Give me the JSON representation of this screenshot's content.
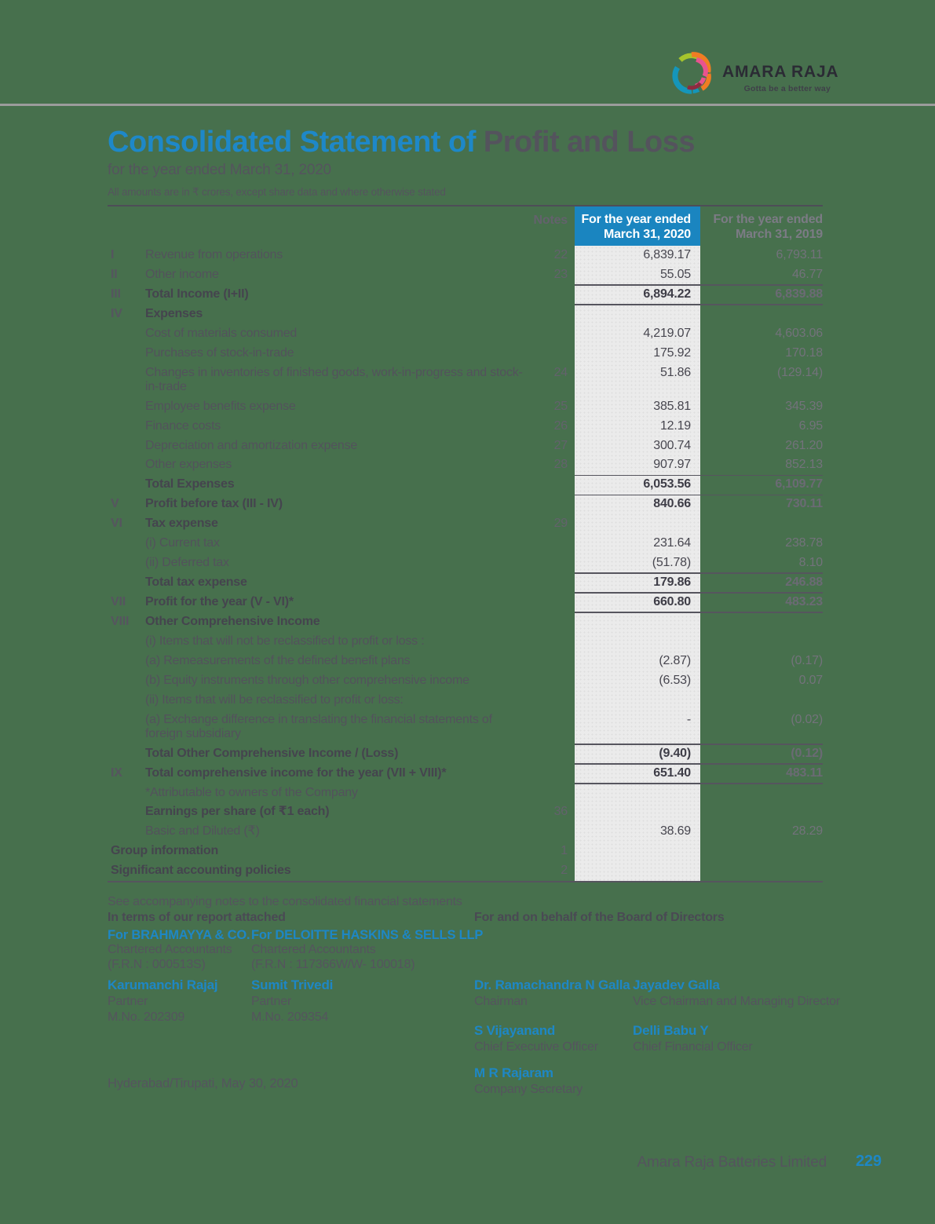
{
  "colors": {
    "page_bg": "#47704D",
    "accent_blue": "#1E87C5",
    "header_cell_blue": "#1A85C0",
    "column_grey": "#EBEBEB"
  },
  "logo": {
    "brand": "AMARA RAJA",
    "tagline": "Gotta be a better way"
  },
  "title": {
    "highlight": "Consolidated Statement of ",
    "rest": "Profit and Loss"
  },
  "subtitle": "for the year ended March 31, 2020",
  "amounts_note": "All amounts are in ₹ crores, except share data and where otherwise stated",
  "table": {
    "header": {
      "notes": "Notes",
      "col2020_line1": "For the year ended",
      "col2020_line2": "March 31, 2020",
      "col2019_line1": "For the year ended",
      "col2019_line2": "March 31, 2019"
    },
    "rows": [
      {
        "roman": "I",
        "label": "Revenue from operations",
        "note": "22",
        "v2020": "6,839.17",
        "v2019": "6,793.11"
      },
      {
        "roman": "II",
        "label": "Other income",
        "note": "23",
        "v2020": "55.05",
        "v2019": "46.77"
      },
      {
        "roman": "III",
        "label": "Total Income (I+II)",
        "bold": true,
        "v2020": "6,894.22",
        "v2019": "6,839.88",
        "rule_above": true,
        "rule_below": true
      },
      {
        "roman": "IV",
        "label": "Expenses",
        "bold": true
      },
      {
        "label": "Cost of materials consumed",
        "v2020": "4,219.07",
        "v2019": "4,603.06"
      },
      {
        "label": "Purchases of stock-in-trade",
        "v2020": "175.92",
        "v2019": "170.18"
      },
      {
        "label": "Changes in inventories of finished goods, work-in-progress and stock-in-trade",
        "note": "24",
        "v2020": "51.86",
        "v2019": "(129.14)"
      },
      {
        "label": "Employee benefits expense",
        "note": "25",
        "v2020": "385.81",
        "v2019": "345.39"
      },
      {
        "label": "Finance costs",
        "note": "26",
        "v2020": "12.19",
        "v2019": "6.95"
      },
      {
        "label": "Depreciation and amortization expense",
        "note": "27",
        "v2020": "300.74",
        "v2019": "261.20"
      },
      {
        "label": "Other expenses",
        "note": "28",
        "v2020": "907.97",
        "v2019": "852.13"
      },
      {
        "label": "Total Expenses",
        "bold": true,
        "v2020": "6,053.56",
        "v2019": "6,109.77",
        "rule_above": true,
        "rule_below": true
      },
      {
        "roman": "V",
        "label": "Profit before tax (III - IV)",
        "bold": true,
        "v2020": "840.66",
        "v2019": "730.11"
      },
      {
        "roman": "VI",
        "label": "Tax expense",
        "bold": true,
        "note": "29"
      },
      {
        "label": "(i) Current tax",
        "v2020": "231.64",
        "v2019": "238.78"
      },
      {
        "label": "(ii) Deferred tax",
        "v2020": "(51.78)",
        "v2019": "8.10"
      },
      {
        "label": "Total tax expense",
        "bold": true,
        "v2020": "179.86",
        "v2019": "246.88",
        "rule_above": true,
        "rule_below": true
      },
      {
        "roman": "VII",
        "label": "Profit for the year (V - VI)*",
        "bold": true,
        "v2020": "660.80",
        "v2019": "483.23",
        "rule_below": true
      },
      {
        "roman": "VIII",
        "label": "Other Comprehensive Income",
        "bold": true
      },
      {
        "label": "(i) Items that will not be reclassified to profit or loss :"
      },
      {
        "label": "(a) Remeasurements of the defined benefit plans",
        "v2020": "(2.87)",
        "v2019": "(0.17)"
      },
      {
        "label": "(b) Equity instruments through other comprehensive income",
        "v2020": "(6.53)",
        "v2019": "0.07"
      },
      {
        "label": "(ii) Items that will be reclassified to profit or loss:"
      },
      {
        "label": "(a) Exchange difference in translating the financial statements of foreign subsidiary",
        "v2020": "-",
        "v2019": "(0.02)"
      },
      {
        "label": "Total Other Comprehensive Income / (Loss)",
        "bold": true,
        "v2020": "(9.40)",
        "v2019": "(0.12)",
        "rule_above": true,
        "rule_below": true
      },
      {
        "roman": "IX",
        "label": "Total comprehensive income for the year (VII + VIII)*",
        "bold": true,
        "v2020": "651.40",
        "v2019": "483.11",
        "rule_below": true
      },
      {
        "label": "*Attributable to owners of the Company"
      },
      {
        "label": "Earnings per share (of ₹1 each)",
        "bold": true,
        "note": "36"
      },
      {
        "label": "Basic and Diluted (₹)",
        "v2020": "38.69",
        "v2019": "28.29"
      },
      {
        "label": "Group information",
        "bold": true,
        "note": "1",
        "full": true
      },
      {
        "label": "Significant accounting policies",
        "bold": true,
        "note": "2",
        "full": true
      }
    ]
  },
  "closing": {
    "see_note": "See accompanying notes to the consolidated financial statements",
    "left_heading": "In terms of our report attached",
    "right_heading": "For and on behalf of the Board of Directors",
    "auditors": [
      {
        "firm": "For BRAHMAYYA & CO.",
        "line1": "Chartered Accountants",
        "line2": "(F.R.N : 000513S)",
        "signer": "Karumanchi Rajaj",
        "role": "Partner",
        "mno": "M.No. 202309"
      },
      {
        "firm": "For DELOITTE HASKINS & SELLS LLP",
        "line1": "Chartered Accountants",
        "line2": "(F.R.N : 117366W/W- 100018)",
        "signer": "Sumit Trivedi",
        "role": "Partner",
        "mno": "M.No. 209354"
      }
    ],
    "board": [
      {
        "name": "Dr. Ramachandra N Galla",
        "role": "Chairman",
        "col": 3,
        "row": 1
      },
      {
        "name": "Jayadev Galla",
        "role": "Vice Chairman and Managing Director",
        "col": 4,
        "row": 1
      },
      {
        "name": "S Vijayanand",
        "role": "Chief Executive Officer",
        "col": 3,
        "row": 2
      },
      {
        "name": "Delli Babu Y",
        "role": "Chief Financial Officer",
        "col": 4,
        "row": 2
      },
      {
        "name": "M R Rajaram",
        "role": "Company Secretary",
        "col": 3,
        "row": 3
      }
    ],
    "place_date": "Hyderabad/Tirupati, May 30, 2020"
  },
  "footer": {
    "company": "Amara Raja Batteries Limited",
    "page": "229"
  }
}
